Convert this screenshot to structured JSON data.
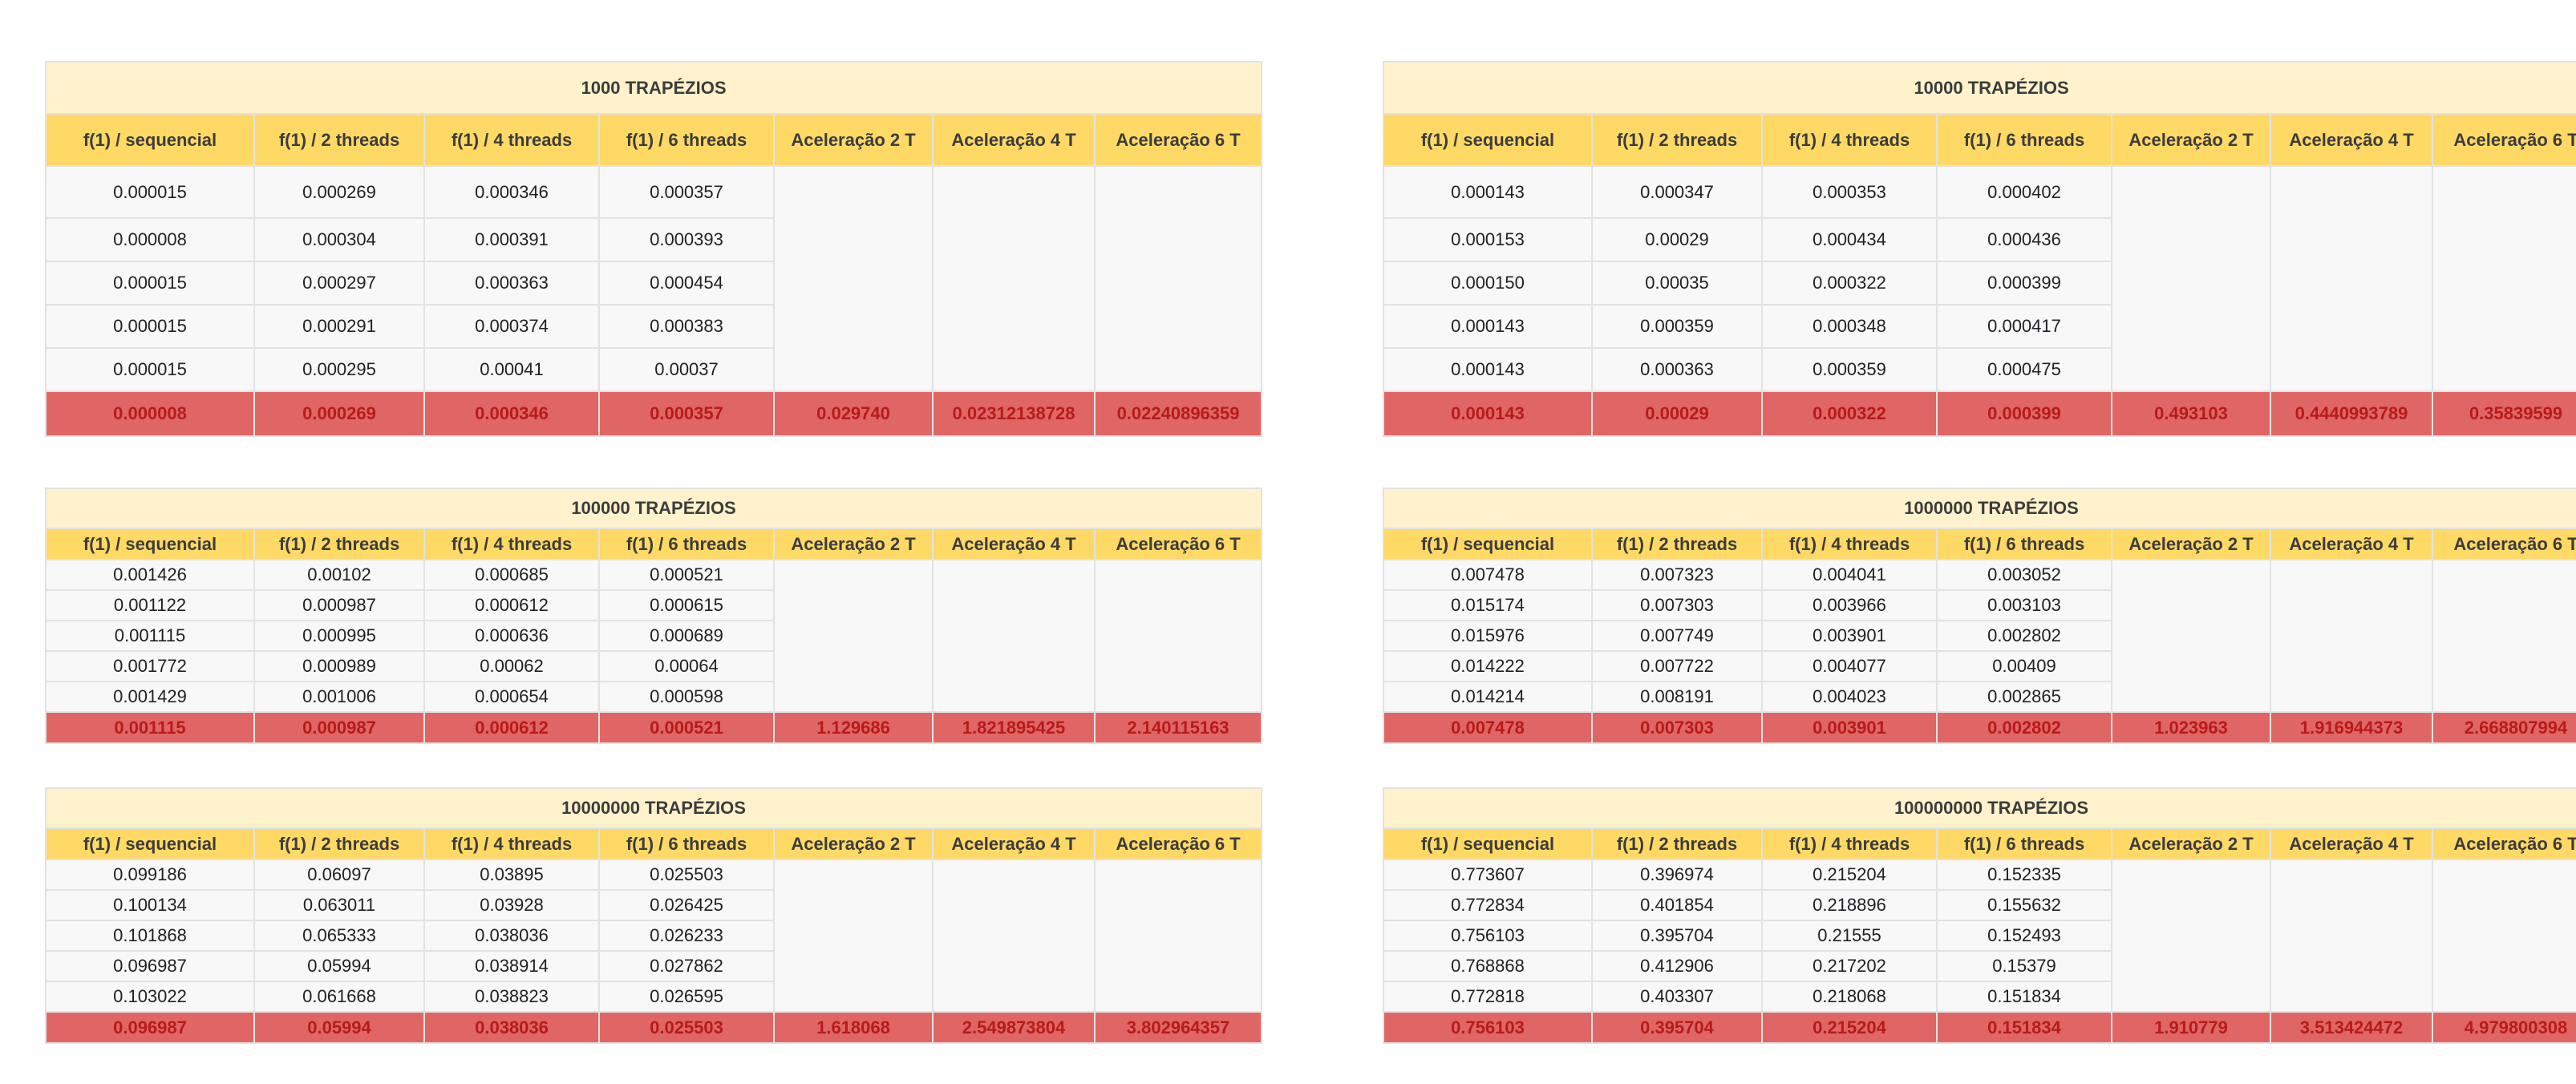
{
  "headers": [
    "f(1) / sequencial",
    "f(1) / 2 threads",
    "f(1) / 4 threads",
    "f(1) / 6 threads",
    "Aceleração 2 T",
    "Aceleração 4 T",
    "Aceleração 6 T"
  ],
  "tables": [
    {
      "title": "1000 TRAPÉZIOS",
      "rows": [
        [
          "0.000015",
          "0.000269",
          "0.000346",
          "0.000357"
        ],
        [
          "0.000008",
          "0.000304",
          "0.000391",
          "0.000393"
        ],
        [
          "0.000015",
          "0.000297",
          "0.000363",
          "0.000454"
        ],
        [
          "0.000015",
          "0.000291",
          "0.000374",
          "0.000383"
        ],
        [
          "0.000015",
          "0.000295",
          "0.00041",
          "0.00037"
        ]
      ],
      "result": [
        "0.000008",
        "0.000269",
        "0.000346",
        "0.000357",
        "0.029740",
        "0.02312138728",
        "0.02240896359"
      ]
    },
    {
      "title": "10000 TRAPÉZIOS",
      "rows": [
        [
          "0.000143",
          "0.000347",
          "0.000353",
          "0.000402"
        ],
        [
          "0.000153",
          "0.00029",
          "0.000434",
          "0.000436"
        ],
        [
          "0.000150",
          "0.00035",
          "0.000322",
          "0.000399"
        ],
        [
          "0.000143",
          "0.000359",
          "0.000348",
          "0.000417"
        ],
        [
          "0.000143",
          "0.000363",
          "0.000359",
          "0.000475"
        ]
      ],
      "result": [
        "0.000143",
        "0.00029",
        "0.000322",
        "0.000399",
        "0.493103",
        "0.4440993789",
        "0.35839599"
      ]
    },
    {
      "title": "100000 TRAPÉZIOS",
      "rows": [
        [
          "0.001426",
          "0.00102",
          "0.000685",
          "0.000521"
        ],
        [
          "0.001122",
          "0.000987",
          "0.000612",
          "0.000615"
        ],
        [
          "0.001115",
          "0.000995",
          "0.000636",
          "0.000689"
        ],
        [
          "0.001772",
          "0.000989",
          "0.00062",
          "0.00064"
        ],
        [
          "0.001429",
          "0.001006",
          "0.000654",
          "0.000598"
        ]
      ],
      "result": [
        "0.001115",
        "0.000987",
        "0.000612",
        "0.000521",
        "1.129686",
        "1.821895425",
        "2.140115163"
      ]
    },
    {
      "title": "1000000 TRAPÉZIOS",
      "rows": [
        [
          "0.007478",
          "0.007323",
          "0.004041",
          "0.003052"
        ],
        [
          "0.015174",
          "0.007303",
          "0.003966",
          "0.003103"
        ],
        [
          "0.015976",
          "0.007749",
          "0.003901",
          "0.002802"
        ],
        [
          "0.014222",
          "0.007722",
          "0.004077",
          "0.00409"
        ],
        [
          "0.014214",
          "0.008191",
          "0.004023",
          "0.002865"
        ]
      ],
      "result": [
        "0.007478",
        "0.007303",
        "0.003901",
        "0.002802",
        "1.023963",
        "1.916944373",
        "2.668807994"
      ]
    },
    {
      "title": "10000000 TRAPÉZIOS",
      "rows": [
        [
          "0.099186",
          "0.06097",
          "0.03895",
          "0.025503"
        ],
        [
          "0.100134",
          "0.063011",
          "0.03928",
          "0.026425"
        ],
        [
          "0.101868",
          "0.065333",
          "0.038036",
          "0.026233"
        ],
        [
          "0.096987",
          "0.05994",
          "0.038914",
          "0.027862"
        ],
        [
          "0.103022",
          "0.061668",
          "0.038823",
          "0.026595"
        ]
      ],
      "result": [
        "0.096987",
        "0.05994",
        "0.038036",
        "0.025503",
        "1.618068",
        "2.549873804",
        "3.802964357"
      ]
    },
    {
      "title": "100000000 TRAPÉZIOS",
      "rows": [
        [
          "0.773607",
          "0.396974",
          "0.215204",
          "0.152335"
        ],
        [
          "0.772834",
          "0.401854",
          "0.218896",
          "0.155632"
        ],
        [
          "0.756103",
          "0.395704",
          "0.21555",
          "0.152493"
        ],
        [
          "0.768868",
          "0.412906",
          "0.217202",
          "0.15379"
        ],
        [
          "0.772818",
          "0.403307",
          "0.218068",
          "0.151834"
        ]
      ],
      "result": [
        "0.756103",
        "0.395704",
        "0.215204",
        "0.151834",
        "1.910779",
        "3.513424472",
        "4.979800308"
      ]
    }
  ],
  "colors": {
    "title_bg": "#fff2cc",
    "header_bg": "#ffd966",
    "result_bg": "#e06666",
    "result_text": "#b81a1a",
    "cell_bg": "#f8f8f8"
  }
}
